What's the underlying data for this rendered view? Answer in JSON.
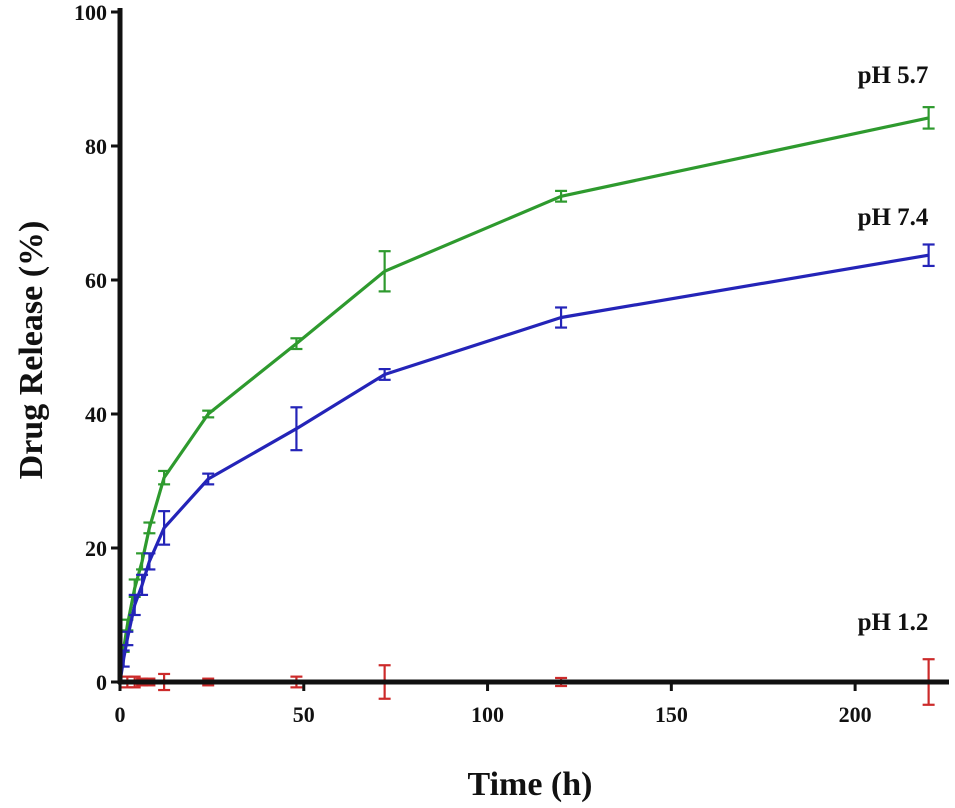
{
  "chart_data": {
    "type": "line",
    "title": "",
    "xlabel": "Time (h)",
    "ylabel": "Drug Release (%)",
    "xlim": [
      0,
      225
    ],
    "ylim": [
      0,
      100
    ],
    "x_ticks": [
      0,
      50,
      100,
      150,
      200
    ],
    "y_ticks": [
      0,
      20,
      40,
      60,
      80,
      100
    ],
    "x_tick_labels": [
      "0",
      "50",
      "100",
      "150",
      "200"
    ],
    "y_tick_labels": [
      "0",
      "20",
      "40",
      "60",
      "80",
      "100"
    ],
    "grid": false,
    "legend": "inline labels near line ends",
    "series": [
      {
        "name": "pH 5.7",
        "color": "#2e9a2e",
        "x": [
          0,
          1,
          2,
          4,
          6,
          8,
          12,
          24,
          48,
          72,
          120,
          220
        ],
        "values": [
          0,
          5,
          8.5,
          14,
          18,
          23,
          30.5,
          40,
          50.5,
          61.3,
          72.5,
          84.2
        ],
        "errors": [
          0,
          0.5,
          0.8,
          1.3,
          1.2,
          0.8,
          1.0,
          0.5,
          0.8,
          3.0,
          0.8,
          1.6
        ]
      },
      {
        "name": "pH 7.4",
        "color": "#2424b8",
        "x": [
          0,
          1,
          2,
          4,
          6,
          8,
          12,
          24,
          48,
          72,
          120,
          220
        ],
        "values": [
          0,
          3.5,
          6.5,
          11.5,
          14.5,
          18,
          23,
          30.3,
          37.8,
          45.9,
          54.4,
          63.7
        ],
        "errors": [
          0,
          1.2,
          1.0,
          1.5,
          1.5,
          1.2,
          2.5,
          0.8,
          3.2,
          0.8,
          1.5,
          1.6
        ]
      },
      {
        "name": "pH 1.2",
        "color": "#cc2a2a",
        "x": [
          0,
          2,
          4,
          6,
          8,
          12,
          24,
          48,
          72,
          120,
          220
        ],
        "values": [
          0,
          0,
          0,
          0,
          0,
          0,
          0,
          0,
          0,
          0,
          0
        ],
        "errors": [
          0,
          0.8,
          0.8,
          0.5,
          0.5,
          1.2,
          0.5,
          0.8,
          2.5,
          0.6,
          3.4
        ]
      }
    ]
  }
}
